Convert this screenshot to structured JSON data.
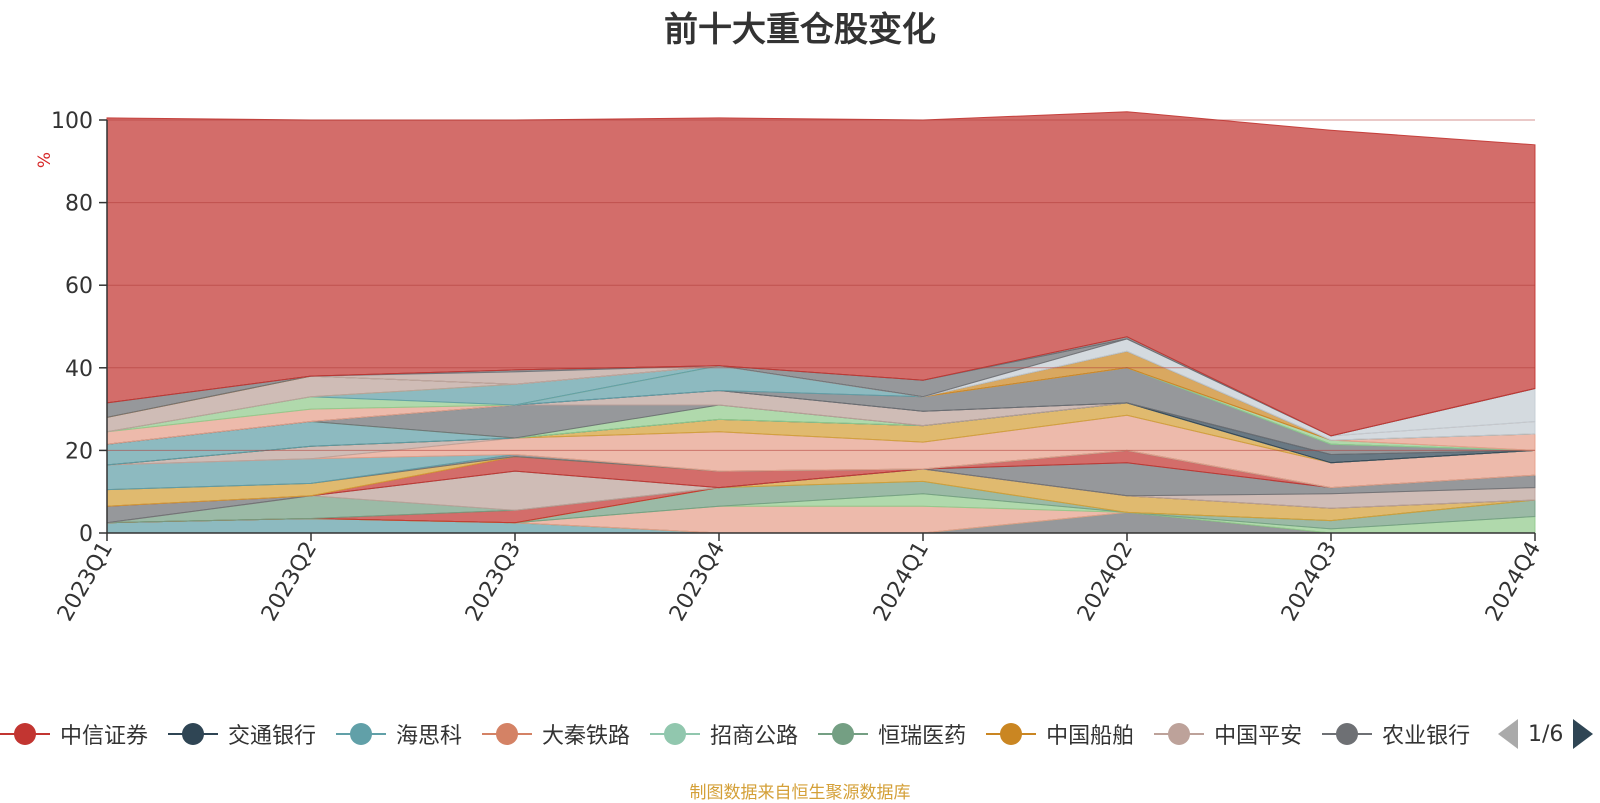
{
  "chart_data": {
    "type": "area",
    "stacked": true,
    "title": "前十大重仓股变化",
    "ylabel": "%",
    "xlabel": "",
    "ylim": [
      0,
      100
    ],
    "yticks": [
      0,
      20,
      40,
      60,
      80,
      100
    ],
    "grid": true,
    "categories": [
      "2023Q1",
      "2023Q2",
      "2023Q3",
      "2023Q4",
      "2024Q1",
      "2024Q2",
      "2024Q3",
      "2024Q4"
    ],
    "series": [
      {
        "name": "",
        "color": "#61a0a8",
        "values": [
          2.5,
          3.5,
          2.5,
          0,
          0,
          0,
          0,
          0
        ]
      },
      {
        "name": "",
        "color": "#6e7074",
        "values": [
          0,
          0,
          0,
          0,
          0,
          5,
          0,
          0
        ]
      },
      {
        "name": "",
        "color": "#91ca8c",
        "values": [
          0,
          0,
          0,
          0,
          0,
          0,
          1,
          4
        ]
      },
      {
        "name": "",
        "color": "#749f83",
        "values": [
          0,
          0,
          0,
          0,
          0,
          0,
          2,
          4
        ]
      },
      {
        "name": "",
        "color": "#e6a08a",
        "values": [
          0,
          0,
          0,
          6.5,
          6.5,
          0,
          0,
          0
        ]
      },
      {
        "name": "",
        "color": "#91ca8c",
        "values": [
          0,
          0,
          0,
          0,
          3,
          0,
          0,
          0
        ]
      },
      {
        "name": "",
        "color": "#749f83",
        "values": [
          0,
          0,
          0,
          4.5,
          3,
          0,
          0,
          0
        ]
      },
      {
        "name": "",
        "color": "#d4a038",
        "values": [
          0,
          0,
          0,
          0,
          3,
          4,
          3,
          0
        ]
      },
      {
        "name": "",
        "color": "#c23531",
        "values": [
          0,
          0,
          3,
          0,
          0,
          0,
          0,
          0
        ]
      },
      {
        "name": "",
        "color": "#749f83",
        "values": [
          0,
          5.5,
          0,
          0,
          0,
          0,
          0,
          0
        ]
      },
      {
        "name": "",
        "color": "#bda29a",
        "values": [
          0,
          0,
          9.5,
          0,
          0,
          0,
          3.5,
          3
        ]
      },
      {
        "name": "",
        "color": "#6e7074",
        "values": [
          4,
          0,
          0,
          0,
          0,
          8,
          1.5,
          3
        ]
      },
      {
        "name": "",
        "color": "#c23531",
        "values": [
          0,
          0,
          3.5,
          4,
          0,
          3,
          0,
          0
        ]
      },
      {
        "name": "",
        "color": "#d4a038",
        "values": [
          4,
          3,
          0,
          0,
          0,
          0,
          0,
          0
        ]
      },
      {
        "name": "",
        "color": "#6e7074",
        "values": [
          0,
          0,
          0.5,
          0,
          0,
          0,
          0,
          0
        ]
      },
      {
        "name": "",
        "color": "#61a0a8",
        "values": [
          6,
          6,
          0,
          0,
          0,
          0,
          0,
          0
        ]
      },
      {
        "name": "",
        "color": "#e6a08a",
        "values": [
          0,
          0,
          4,
          9.5,
          6.5,
          8.5,
          6,
          6
        ]
      },
      {
        "name": "",
        "color": "#bda29a",
        "values": [
          0,
          3,
          0,
          0,
          0,
          0,
          0,
          0
        ]
      },
      {
        "name": "",
        "color": "#d4a038",
        "values": [
          0,
          0,
          0,
          3,
          4,
          3,
          0,
          0
        ]
      },
      {
        "name": "",
        "color": "#2f4554",
        "values": [
          0,
          0,
          0,
          0,
          0,
          0,
          0,
          0
        ]
      },
      {
        "name": "",
        "color": "#61a0a8",
        "values": [
          5,
          6,
          0,
          0,
          0,
          0,
          0,
          0
        ]
      },
      {
        "name": "",
        "color": "#91ca8c",
        "values": [
          0,
          0,
          0,
          3.5,
          0,
          0,
          0,
          0
        ]
      },
      {
        "name": "",
        "color": "#6e7074",
        "values": [
          0,
          0,
          8,
          0,
          0,
          0,
          0,
          0
        ]
      },
      {
        "name": "",
        "color": "#bda29a",
        "values": [
          0,
          0,
          0,
          3.5,
          3.5,
          0,
          0,
          0
        ]
      },
      {
        "name": "",
        "color": "#2f4554",
        "values": [
          0,
          0,
          0,
          0,
          0,
          0,
          2,
          0
        ]
      },
      {
        "name": "",
        "color": "#6e7074",
        "values": [
          0,
          0,
          0,
          0,
          3.5,
          8.5,
          2.5,
          0
        ]
      },
      {
        "name": "",
        "color": "#61a0a8",
        "values": [
          0,
          0,
          0,
          6,
          0,
          0,
          0,
          0
        ]
      },
      {
        "name": "",
        "color": "#e6a08a",
        "values": [
          3,
          3,
          0,
          0,
          0,
          0,
          0,
          0
        ]
      },
      {
        "name": "",
        "color": "#91ca8c",
        "values": [
          0,
          3,
          0,
          0,
          0,
          0,
          0,
          0
        ]
      },
      {
        "name": "",
        "color": "#61a0a8",
        "values": [
          0,
          0,
          5,
          0,
          0,
          0,
          0,
          0
        ]
      },
      {
        "name": "",
        "color": "#91ca8c",
        "values": [
          0,
          0,
          0,
          0,
          0,
          0,
          1,
          0
        ]
      },
      {
        "name": "",
        "color": "#bda29a",
        "values": [
          3.5,
          5,
          0,
          0,
          0,
          0,
          0,
          0
        ]
      },
      {
        "name": "",
        "color": "#e6a08a",
        "values": [
          0,
          0,
          0,
          0,
          0,
          0,
          0,
          4
        ]
      },
      {
        "name": "",
        "color": "#ca8622",
        "values": [
          0,
          0,
          0,
          0,
          0,
          4,
          0,
          0
        ]
      },
      {
        "name": "",
        "color": "#6e7074",
        "values": [
          3.5,
          0,
          0,
          0,
          0,
          0,
          0,
          0
        ]
      },
      {
        "name": "",
        "color": "#c4ccd3",
        "values": [
          0,
          0,
          0,
          0,
          0,
          3,
          1,
          3
        ]
      },
      {
        "name": "",
        "color": "#bda29a",
        "values": [
          0,
          0,
          3,
          0,
          0,
          0,
          0,
          0
        ]
      },
      {
        "name": "",
        "color": "#c4ccd3",
        "values": [
          0,
          0,
          0,
          0,
          0,
          0,
          0,
          8
        ]
      },
      {
        "name": "",
        "color": "#6e7074",
        "values": [
          0,
          0,
          0.5,
          0,
          4,
          0,
          0,
          0
        ]
      },
      {
        "name": "",
        "color": "#6e7074",
        "values": [
          0,
          0,
          0,
          0,
          0,
          0.5,
          0,
          0
        ]
      },
      {
        "name": "",
        "color": "#c23531",
        "values": [
          69,
          62,
          60.5,
          60,
          63,
          54.5,
          74,
          59
        ]
      }
    ]
  },
  "legend": {
    "items": [
      {
        "label": "中信证券",
        "color": "#c23531"
      },
      {
        "label": "交通银行",
        "color": "#2f4554"
      },
      {
        "label": "海思科",
        "color": "#61a0a8"
      },
      {
        "label": "大秦铁路",
        "color": "#d48265"
      },
      {
        "label": "招商公路",
        "color": "#91c7ae"
      },
      {
        "label": "恒瑞医药",
        "color": "#749f83"
      },
      {
        "label": "中国船舶",
        "color": "#ca8622"
      },
      {
        "label": "中国平安",
        "color": "#bda29a"
      },
      {
        "label": "农业银行",
        "color": "#6e7074"
      }
    ],
    "page": "1/6"
  },
  "source_note": "制图数据来自恒生聚源数据库"
}
